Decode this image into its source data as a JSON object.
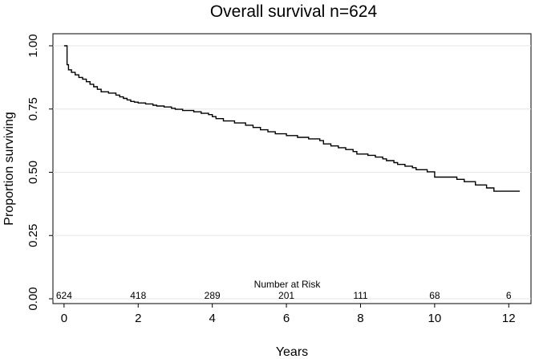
{
  "chart_data": {
    "type": "line",
    "title": "Overall survival n=624",
    "xlabel": "Years",
    "ylabel": "Proportion surviving",
    "xlim": [
      -0.3,
      12.6
    ],
    "ylim": [
      0,
      1
    ],
    "x_ticks": [
      0,
      2,
      4,
      6,
      8,
      10,
      12
    ],
    "y_ticks": [
      0,
      0.25,
      0.5,
      0.75,
      1
    ],
    "y_tick_labels": [
      "0.00",
      "0.25",
      "0.50",
      "0.75",
      "1.00"
    ],
    "grid": "horizontal",
    "step": true,
    "series": [
      {
        "x": [
          0,
          0.08,
          0.12,
          0.2,
          0.3,
          0.4,
          0.5,
          0.6,
          0.7,
          0.8,
          0.9,
          1.0,
          1.2,
          1.4,
          1.5,
          1.6,
          1.7,
          1.8,
          1.9,
          2.0,
          2.2,
          2.4,
          2.5,
          2.7,
          2.9,
          3.0,
          3.2,
          3.5,
          3.7,
          3.9,
          4.0,
          4.1,
          4.3,
          4.6,
          4.9,
          5.1,
          5.3,
          5.5,
          5.7,
          6.0,
          6.3,
          6.6,
          6.9,
          7.0,
          7.2,
          7.4,
          7.6,
          7.8,
          7.9,
          8.2,
          8.4,
          8.6,
          8.7,
          8.9,
          9.0,
          9.2,
          9.4,
          9.5,
          9.8,
          10.0,
          10.6,
          10.8,
          11.1,
          11.4,
          11.6,
          12.3
        ],
        "y": [
          1.0,
          0.925,
          0.905,
          0.895,
          0.885,
          0.875,
          0.868,
          0.858,
          0.848,
          0.838,
          0.828,
          0.818,
          0.813,
          0.805,
          0.798,
          0.792,
          0.786,
          0.78,
          0.777,
          0.774,
          0.77,
          0.765,
          0.762,
          0.758,
          0.753,
          0.749,
          0.744,
          0.739,
          0.733,
          0.728,
          0.72,
          0.712,
          0.703,
          0.695,
          0.686,
          0.677,
          0.668,
          0.66,
          0.652,
          0.645,
          0.638,
          0.632,
          0.625,
          0.612,
          0.604,
          0.597,
          0.59,
          0.582,
          0.572,
          0.567,
          0.56,
          0.553,
          0.546,
          0.538,
          0.531,
          0.524,
          0.518,
          0.51,
          0.502,
          0.481,
          0.472,
          0.463,
          0.45,
          0.438,
          0.425,
          0.425
        ]
      }
    ],
    "risk_table": {
      "title": "Number at Risk",
      "x": [
        0,
        2,
        4,
        6,
        8,
        10,
        12
      ],
      "values": [
        "624",
        "418",
        "289",
        "201",
        "111",
        "68",
        "6"
      ]
    }
  }
}
